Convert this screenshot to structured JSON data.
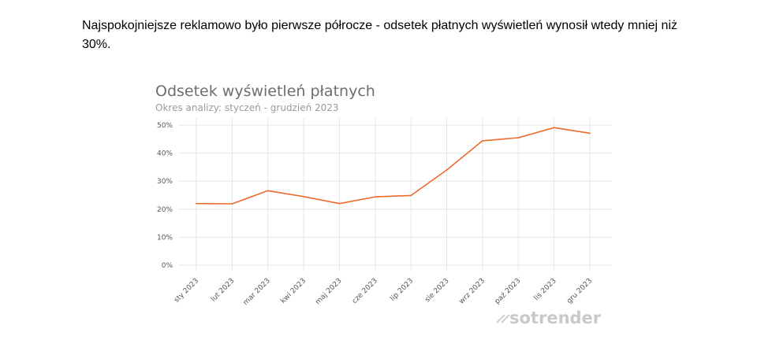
{
  "intro_text": "Najspokojniejsze reklamowo było pierwsze półrocze - odsetek płatnych wyświetleń wynosił wtedy mniej niż 30%.",
  "watermark": "sotrender",
  "colors": {
    "line": "#ee6a2c",
    "grid": "#e6e6e6",
    "title": "#6e6e6e",
    "subtitle": "#9a9a9a"
  },
  "chart_data": {
    "type": "line",
    "title": "Odsetek wyświetleń płatnych",
    "subtitle": "Okres analizy: styczeń - grudzień 2023",
    "xlabel": "",
    "ylabel": "",
    "categories": [
      "sty 2023",
      "lut 2023",
      "mar 2023",
      "kwi 2023",
      "maj 2023",
      "cze 2023",
      "lip 2023",
      "sie 2023",
      "wrz 2023",
      "paź 2023",
      "lis 2023",
      "gru 2023"
    ],
    "values": [
      22.0,
      21.9,
      26.6,
      24.5,
      22.0,
      24.4,
      24.9,
      34.0,
      44.4,
      45.5,
      49.1,
      47.1
    ],
    "yticks": [
      "0%",
      "10%",
      "20%",
      "30%",
      "40%",
      "50%"
    ],
    "ylim": [
      0,
      50
    ],
    "grid": true,
    "legend": "none"
  }
}
